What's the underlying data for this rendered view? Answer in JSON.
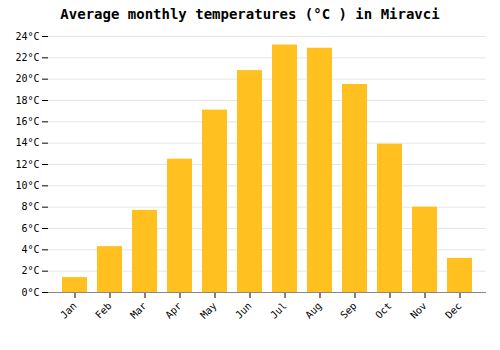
{
  "chart_data": {
    "type": "bar",
    "title": "Average monthly temperatures (°C ) in Miravci",
    "categories": [
      "Jan",
      "Feb",
      "Mar",
      "Apr",
      "May",
      "Jun",
      "Jul",
      "Aug",
      "Sep",
      "Oct",
      "Nov",
      "Dec"
    ],
    "values": [
      1.4,
      4.3,
      7.7,
      12.5,
      17.1,
      20.8,
      23.2,
      22.9,
      19.5,
      13.9,
      8.0,
      3.2
    ],
    "color": "#FFC020",
    "ylim": [
      0,
      24
    ],
    "yticks": [
      {
        "value": 0,
        "label": "0°C"
      },
      {
        "value": 2,
        "label": "2°C"
      },
      {
        "value": 4,
        "label": "4°C"
      },
      {
        "value": 6,
        "label": "6°C"
      },
      {
        "value": 8,
        "label": "8°C"
      },
      {
        "value": 10,
        "label": "10°C"
      },
      {
        "value": 12,
        "label": "12°C"
      },
      {
        "value": 14,
        "label": "14°C"
      },
      {
        "value": 16,
        "label": "16°C"
      },
      {
        "value": 18,
        "label": "18°C"
      },
      {
        "value": 20,
        "label": "20°C"
      },
      {
        "value": 22,
        "label": "22°C"
      },
      {
        "value": 24,
        "label": "24°C"
      }
    ],
    "grid": true
  }
}
